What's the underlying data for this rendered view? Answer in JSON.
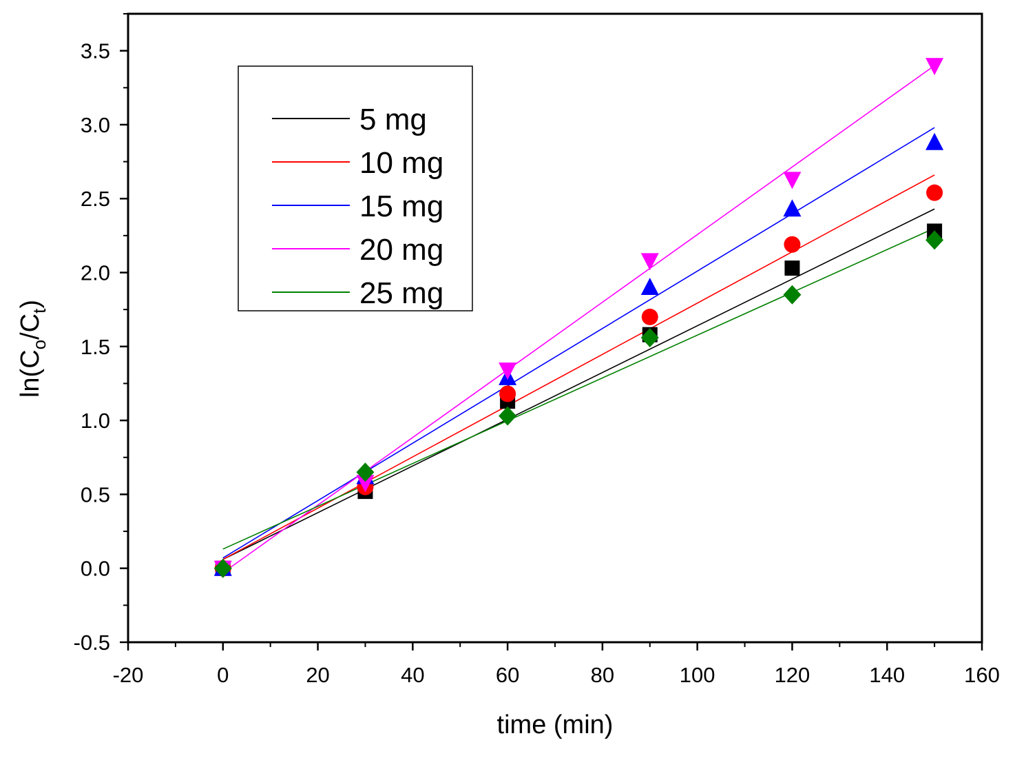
{
  "chart_data": {
    "type": "scatter",
    "xlabel": "time (min)",
    "ylabel": {
      "main": "ln(C",
      "sub1": "o",
      "mid": "/C",
      "sub2": "t",
      "end": ")"
    },
    "xlim": [
      -20,
      160
    ],
    "ylim": [
      -0.5,
      3.75
    ],
    "x_ticks": [
      -20,
      0,
      20,
      40,
      60,
      80,
      100,
      120,
      140,
      160
    ],
    "x_tick_labels": [
      "-20",
      "0",
      "20",
      "40",
      "60",
      "80",
      "100",
      "120",
      "140",
      "160"
    ],
    "y_ticks": [
      -0.5,
      0.0,
      0.5,
      1.0,
      1.5,
      2.0,
      2.5,
      3.0,
      3.5
    ],
    "y_tick_labels": [
      "-0.5",
      "0.0",
      "0.5",
      "1.0",
      "1.5",
      "2.0",
      "2.5",
      "3.0",
      "3.5"
    ],
    "grid": false,
    "legend_position": "top-left",
    "x": [
      0,
      30,
      60,
      90,
      120,
      150
    ],
    "series": [
      {
        "name": "5 mg",
        "color": "#000000",
        "marker": "square",
        "values": [
          0.0,
          0.52,
          1.13,
          1.58,
          2.03,
          2.28
        ],
        "fit": [
          0.06,
          2.43
        ]
      },
      {
        "name": "10 mg",
        "color": "#ff0000",
        "marker": "circle",
        "values": [
          0.0,
          0.55,
          1.18,
          1.7,
          2.19,
          2.54
        ],
        "fit": [
          0.06,
          2.66
        ]
      },
      {
        "name": "15 mg",
        "color": "#0000ff",
        "marker": "triangle-up",
        "values": [
          0.0,
          0.62,
          1.29,
          1.9,
          2.43,
          2.88
        ],
        "fit": [
          0.07,
          2.98
        ]
      },
      {
        "name": "20 mg",
        "color": "#ff00ff",
        "marker": "triangle-down",
        "values": [
          0.0,
          0.58,
          1.34,
          2.08,
          2.63,
          3.4
        ],
        "fit": [
          -0.03,
          3.4
        ]
      },
      {
        "name": "25 mg",
        "color": "#008000",
        "marker": "diamond",
        "values": [
          0.0,
          0.65,
          1.03,
          1.56,
          1.85,
          2.22
        ],
        "fit": [
          0.13,
          2.3
        ]
      }
    ]
  }
}
